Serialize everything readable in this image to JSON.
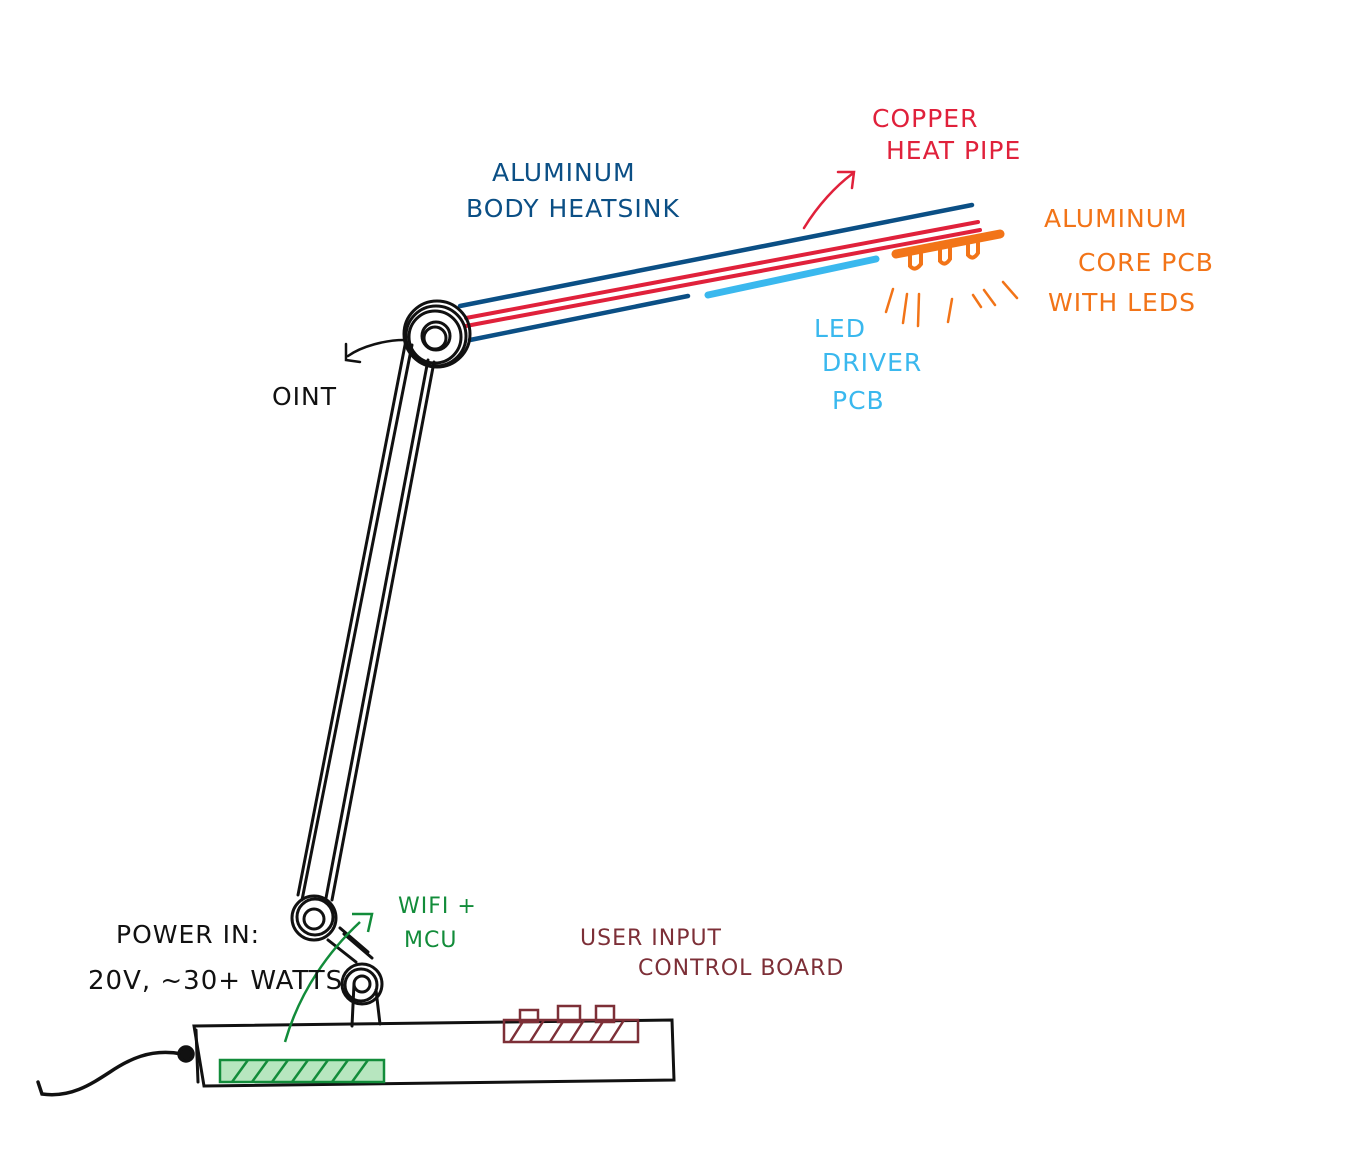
{
  "labels": {
    "aluminum_body_heat_sink": [
      "ALUMINUM",
      "BODY HEATSINK"
    ],
    "copper_heat_pipe": [
      "COPPER",
      "HEAT PIPE"
    ],
    "aluminum_core_pcb": [
      "ALUMINUM",
      "CORE PCB",
      "WITH LEDS"
    ],
    "led_driver_pcb": [
      "LED",
      "DRIVER",
      "PCB"
    ],
    "joint": "OINT",
    "power_in": [
      "POWER IN:",
      "20V, ~30+ WATTS"
    ],
    "wifi_mcu": [
      "WIFI +",
      "MCU"
    ],
    "user_input_board": [
      "USER INPUT",
      "CONTROL BOARD"
    ]
  },
  "colors": {
    "heat_sink": "#0b4f85",
    "heat_pipe": "#e0213b",
    "core_pcb": "#f27418",
    "driver_pcb": "#3ab8ee",
    "wifi_mcu": "#128c3a",
    "control_board": "#7d2f37",
    "outline": "#111111"
  }
}
